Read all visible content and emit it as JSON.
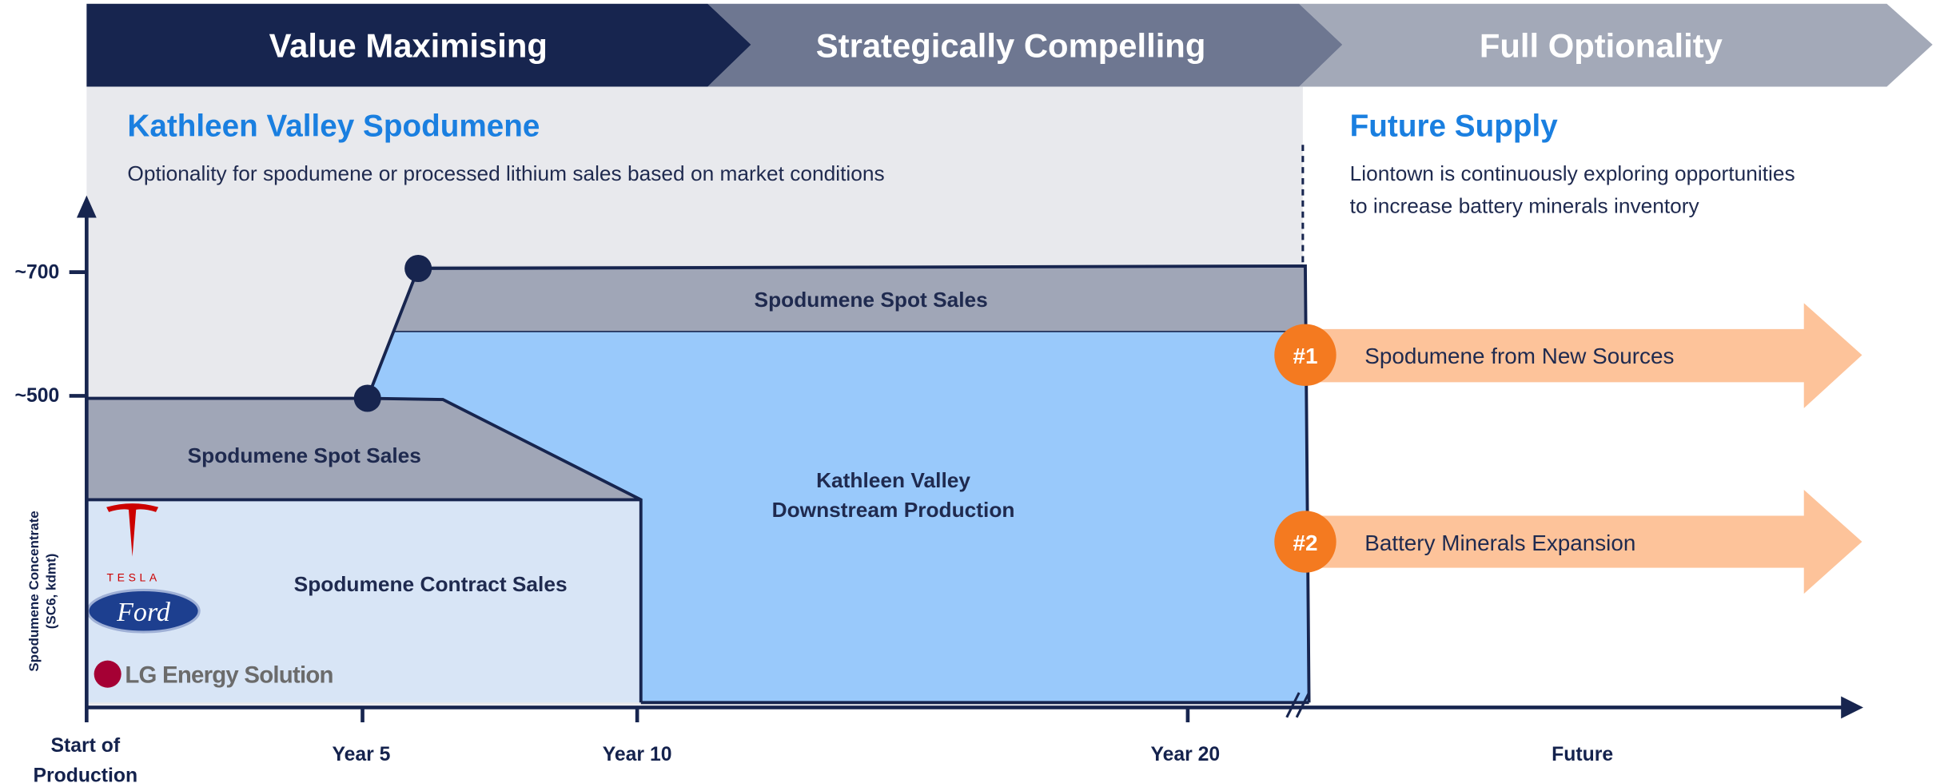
{
  "banner": [
    "Value Maximising",
    "Strategically Compelling",
    "Full Optionality"
  ],
  "left_section": {
    "title": "Kathleen Valley Spodumene",
    "description": "Optionality for spodumene or processed lithium sales based on market conditions"
  },
  "right_section": {
    "title": "Future Supply",
    "description": [
      "Liontown is continuously exploring opportunities",
      "to increase battery minerals inventory"
    ]
  },
  "y_axis": {
    "title": [
      "Spodumene Concentrate",
      "(SC6, kdmt)"
    ],
    "labels": [
      "~700",
      "~500"
    ]
  },
  "x_axis": {
    "start": [
      "Start of",
      "Production"
    ],
    "labels": [
      "Year 5",
      "Year 10",
      "Year 20",
      "Future"
    ]
  },
  "regions": {
    "spot_upper": "Spodumene Spot Sales",
    "spot_lower": "Spodumene Spot Sales",
    "contract": "Spodumene Contract Sales",
    "downstream": [
      "Kathleen Valley",
      "Downstream Production"
    ]
  },
  "customers": [
    "TESLA",
    "Ford",
    "LG Energy Solution"
  ],
  "future_items": [
    {
      "number": "#1",
      "label": "Spodumene from New Sources"
    },
    {
      "number": "#2",
      "label": "Battery Minerals Expansion"
    }
  ]
}
